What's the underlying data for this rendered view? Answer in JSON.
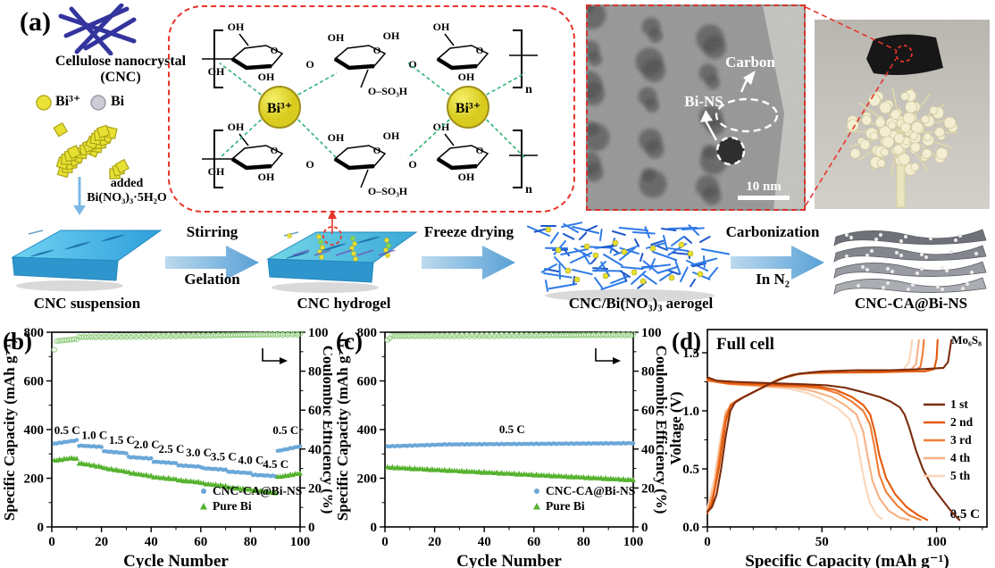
{
  "panel_a": {
    "tag": "(a)",
    "cnc_title_1": "Cellulose nanocrystal",
    "cnc_title_2": "(CNC)",
    "legend": {
      "bi3": "Bi³⁺",
      "bi": "Bi"
    },
    "added_1": "added",
    "added_2": "Bi(NO₃)₃·5H₂O",
    "molecule": {
      "oh": "OH",
      "o": "O",
      "sulfate": "O–SO₃H",
      "repeat": "n",
      "bi_ion": "Bi³⁺"
    },
    "tem": {
      "carbon": "Carbon",
      "bins": "Bi-NS",
      "scalebar": "10 nm"
    },
    "steps": [
      {
        "name": "CNC suspension"
      },
      {
        "name": "CNC hydrogel"
      },
      {
        "name": "CNC/Bi(NO₃)₃ aerogel"
      },
      {
        "name": "CNC-CA@Bi-NS"
      }
    ],
    "arrows": [
      {
        "top": "Stirring",
        "bottom": "Gelation"
      },
      {
        "top": "Freeze drying",
        "bottom": ""
      },
      {
        "top": "Carbonization",
        "bottom": "In N₂"
      }
    ]
  },
  "chart_data": [
    {
      "id": "b",
      "type": "scatter",
      "panel_label": "(b)",
      "xlabel": "Cycle Number",
      "ylabel_left": "Specific Capacity (mAh g⁻¹)",
      "ylabel_right": "Coulombic Efficiency (%)",
      "xlim": [
        0,
        100
      ],
      "ylim_left": [
        0,
        800
      ],
      "ylim_right": [
        0,
        100
      ],
      "xticks": [
        0,
        20,
        40,
        60,
        80,
        100
      ],
      "yticks_left": [
        0,
        200,
        400,
        600,
        800
      ],
      "yticks_right": [
        0,
        20,
        40,
        60,
        80,
        100
      ],
      "rate_labels": [
        {
          "text": "0.5 C",
          "x": 1,
          "y": 382
        },
        {
          "text": "1.0 C",
          "x": 12,
          "y": 362
        },
        {
          "text": "1.5 C",
          "x": 23,
          "y": 342
        },
        {
          "text": "2.0 C",
          "x": 33,
          "y": 323
        },
        {
          "text": "2.5 C",
          "x": 43,
          "y": 305
        },
        {
          "text": "3.0 C",
          "x": 54,
          "y": 289
        },
        {
          "text": "3.5 C",
          "x": 64,
          "y": 273
        },
        {
          "text": "4.0 C",
          "x": 75,
          "y": 258
        },
        {
          "text": "4.5 C",
          "x": 85,
          "y": 243
        },
        {
          "text": "0.5 C",
          "x": 89,
          "y": 382
        }
      ],
      "series": [
        {
          "name": "CNC-CA@Bi-NS",
          "marker": "circle",
          "color": "#6aa7d8",
          "axis": "left",
          "segments": [
            [
              1,
              10,
              342,
              356
            ],
            [
              11,
              20,
              334,
              329
            ],
            [
              21,
              30,
              311,
              303
            ],
            [
              31,
              40,
              287,
              281
            ],
            [
              41,
              50,
              268,
              262
            ],
            [
              51,
              60,
              253,
              247
            ],
            [
              61,
              70,
              241,
              235
            ],
            [
              71,
              80,
              227,
              221
            ],
            [
              81,
              90,
              214,
              209
            ],
            [
              91,
              100,
              312,
              331
            ]
          ]
        },
        {
          "name": "Pure Bi",
          "marker": "triangle",
          "color": "#55b22e",
          "axis": "left",
          "segments": [
            [
              1,
              8,
              274,
              284
            ],
            [
              9,
              10,
              283,
              280
            ],
            [
              11,
              20,
              263,
              248
            ],
            [
              21,
              30,
              243,
              228
            ],
            [
              31,
              40,
              224,
              210
            ],
            [
              41,
              50,
              206,
              197
            ],
            [
              51,
              60,
              193,
              184
            ],
            [
              61,
              70,
              179,
              169
            ],
            [
              71,
              80,
              164,
              154
            ],
            [
              81,
              90,
              151,
              142
            ],
            [
              91,
              100,
              206,
              221
            ]
          ]
        },
        {
          "name": "Coulombic Efficiency",
          "marker": "open-circle",
          "color": "#94cf82",
          "axis": "right",
          "segments": [
            [
              1,
              1,
              91,
              91
            ],
            [
              2,
              10,
              95.5,
              96.5
            ],
            [
              11,
              60,
              97.5,
              98.3
            ],
            [
              61,
              100,
              98.3,
              99
            ]
          ]
        }
      ],
      "legend": [
        "CNC-CA@Bi-NS",
        "Pure Bi"
      ]
    },
    {
      "id": "c",
      "type": "scatter",
      "panel_label": "(c)",
      "xlabel": "Cycle Number",
      "ylabel_left": "Specific Capacity (mAh g⁻¹)",
      "ylabel_right": "Coulombic Efficiency (%)",
      "xlim": [
        0,
        100
      ],
      "ylim_left": [
        0,
        800
      ],
      "ylim_right": [
        0,
        100
      ],
      "xticks": [
        0,
        20,
        40,
        60,
        80,
        100
      ],
      "yticks_left": [
        0,
        200,
        400,
        600,
        800
      ],
      "yticks_right": [
        0,
        20,
        40,
        60,
        80,
        100
      ],
      "rate_labels": [
        {
          "text": "0.5 C",
          "x": 46,
          "y": 385
        }
      ],
      "series": [
        {
          "name": "CNC-CA@Bi-NS",
          "marker": "circle",
          "color": "#6aa7d8",
          "axis": "left",
          "segments": [
            [
              1,
              25,
              331,
              339
            ],
            [
              26,
              100,
              339,
              344
            ]
          ]
        },
        {
          "name": "Pure Bi",
          "marker": "triangle",
          "color": "#55b22e",
          "axis": "left",
          "segments": [
            [
              1,
              100,
              246,
              194
            ]
          ]
        },
        {
          "name": "Coulombic Efficiency",
          "marker": "open-circle",
          "color": "#94cf82",
          "axis": "right",
          "segments": [
            [
              1,
              2,
              96,
              97
            ],
            [
              3,
              100,
              98,
              98.6
            ]
          ]
        }
      ],
      "legend": [
        "CNC-CA@Bi-NS",
        "Pure Bi"
      ]
    },
    {
      "id": "d",
      "type": "line",
      "panel_label": "(d)",
      "title": "Full cell",
      "annotation_right": "Mo₆S₈",
      "annotation_rate": "0.5 C",
      "xlabel": "Specific Capacity (mAh g⁻¹)",
      "ylabel": "Voltage (V)",
      "xlim": [
        0,
        122
      ],
      "ylim": [
        0,
        1.7
      ],
      "xticks": [
        0,
        50,
        100
      ],
      "ytick_labels": [
        "0.0",
        "0.5",
        "1.0",
        "1.5"
      ],
      "yticks": [
        0,
        0.5,
        1.0,
        1.5
      ],
      "series": [
        {
          "name": "1 st",
          "color": "#7a2c0d",
          "charge": [
            [
              0,
              0.13
            ],
            [
              2,
              0.17
            ],
            [
              4,
              0.28
            ],
            [
              6,
              0.5
            ],
            [
              8,
              0.78
            ],
            [
              10,
              1.0
            ],
            [
              12,
              1.07
            ],
            [
              16,
              1.12
            ],
            [
              22,
              1.18
            ],
            [
              28,
              1.24
            ],
            [
              34,
              1.29
            ],
            [
              40,
              1.32
            ],
            [
              50,
              1.34
            ],
            [
              65,
              1.35
            ],
            [
              80,
              1.35
            ],
            [
              95,
              1.36
            ],
            [
              103,
              1.37
            ],
            [
              105,
              1.42
            ],
            [
              106,
              1.55
            ],
            [
              106.5,
              1.61
            ]
          ],
          "discharge": [
            [
              0,
              1.29
            ],
            [
              4,
              1.26
            ],
            [
              12,
              1.25
            ],
            [
              25,
              1.24
            ],
            [
              40,
              1.23
            ],
            [
              52,
              1.22
            ],
            [
              60,
              1.2
            ],
            [
              68,
              1.16
            ],
            [
              75,
              1.12
            ],
            [
              80,
              1.08
            ],
            [
              84,
              1.03
            ],
            [
              86,
              0.97
            ],
            [
              88,
              0.86
            ],
            [
              91,
              0.66
            ],
            [
              94,
              0.5
            ],
            [
              98,
              0.35
            ],
            [
              103,
              0.22
            ],
            [
              107,
              0.12
            ],
            [
              110,
              0.06
            ]
          ]
        },
        {
          "name": "2 nd",
          "color": "#e4590b",
          "charge": [
            [
              0,
              0.12
            ],
            [
              2,
              0.2
            ],
            [
              5,
              0.5
            ],
            [
              8,
              0.9
            ],
            [
              10,
              1.05
            ],
            [
              13,
              1.09
            ],
            [
              18,
              1.14
            ],
            [
              25,
              1.21
            ],
            [
              31,
              1.27
            ],
            [
              37,
              1.31
            ],
            [
              45,
              1.33
            ],
            [
              60,
              1.33
            ],
            [
              80,
              1.34
            ],
            [
              95,
              1.34
            ],
            [
              99,
              1.36
            ],
            [
              100,
              1.45
            ],
            [
              100.5,
              1.61
            ]
          ],
          "discharge": [
            [
              0,
              1.27
            ],
            [
              8,
              1.24
            ],
            [
              20,
              1.23
            ],
            [
              35,
              1.22
            ],
            [
              48,
              1.21
            ],
            [
              56,
              1.18
            ],
            [
              63,
              1.12
            ],
            [
              68,
              1.05
            ],
            [
              71,
              0.97
            ],
            [
              73,
              0.82
            ],
            [
              75,
              0.62
            ],
            [
              78,
              0.42
            ],
            [
              82,
              0.28
            ],
            [
              87,
              0.17
            ],
            [
              92,
              0.1
            ],
            [
              96,
              0.06
            ]
          ]
        },
        {
          "name": "3 rd",
          "color": "#f07e35",
          "charge": [
            [
              0,
              0.12
            ],
            [
              3,
              0.3
            ],
            [
              6,
              0.7
            ],
            [
              8,
              0.95
            ],
            [
              10,
              1.04
            ],
            [
              14,
              1.1
            ],
            [
              20,
              1.16
            ],
            [
              27,
              1.23
            ],
            [
              33,
              1.28
            ],
            [
              40,
              1.32
            ],
            [
              55,
              1.33
            ],
            [
              75,
              1.33
            ],
            [
              90,
              1.34
            ],
            [
              93,
              1.38
            ],
            [
              94,
              1.5
            ],
            [
              94.5,
              1.61
            ]
          ],
          "discharge": [
            [
              0,
              1.26
            ],
            [
              10,
              1.23
            ],
            [
              25,
              1.22
            ],
            [
              40,
              1.21
            ],
            [
              50,
              1.19
            ],
            [
              57,
              1.15
            ],
            [
              63,
              1.08
            ],
            [
              68,
              1.0
            ],
            [
              71,
              0.88
            ],
            [
              73,
              0.68
            ],
            [
              75,
              0.45
            ],
            [
              78,
              0.3
            ],
            [
              83,
              0.18
            ],
            [
              88,
              0.1
            ],
            [
              93,
              0.06
            ]
          ]
        },
        {
          "name": "4 th",
          "color": "#f6b183",
          "charge": [
            [
              0,
              0.13
            ],
            [
              3,
              0.35
            ],
            [
              6,
              0.75
            ],
            [
              8,
              0.98
            ],
            [
              11,
              1.06
            ],
            [
              16,
              1.12
            ],
            [
              23,
              1.19
            ],
            [
              30,
              1.26
            ],
            [
              37,
              1.31
            ],
            [
              50,
              1.33
            ],
            [
              70,
              1.33
            ],
            [
              88,
              1.34
            ],
            [
              91,
              1.4
            ],
            [
              92,
              1.55
            ],
            [
              92.3,
              1.61
            ]
          ],
          "discharge": [
            [
              0,
              1.26
            ],
            [
              10,
              1.23
            ],
            [
              25,
              1.21
            ],
            [
              38,
              1.2
            ],
            [
              46,
              1.17
            ],
            [
              54,
              1.12
            ],
            [
              60,
              1.05
            ],
            [
              65,
              0.97
            ],
            [
              68,
              0.82
            ],
            [
              70,
              0.6
            ],
            [
              72,
              0.4
            ],
            [
              75,
              0.25
            ],
            [
              79,
              0.14
            ],
            [
              84,
              0.08
            ],
            [
              88,
              0.06
            ]
          ]
        },
        {
          "name": "5 th",
          "color": "#fbd6b8",
          "charge": [
            [
              0,
              0.16
            ],
            [
              3,
              0.42
            ],
            [
              6,
              0.8
            ],
            [
              8,
              1.0
            ],
            [
              12,
              1.07
            ],
            [
              18,
              1.14
            ],
            [
              25,
              1.21
            ],
            [
              32,
              1.28
            ],
            [
              42,
              1.32
            ],
            [
              60,
              1.33
            ],
            [
              85,
              1.34
            ],
            [
              88,
              1.42
            ],
            [
              89,
              1.55
            ],
            [
              89.3,
              1.61
            ]
          ],
          "discharge": [
            [
              0,
              1.27
            ],
            [
              10,
              1.23
            ],
            [
              24,
              1.21
            ],
            [
              36,
              1.19
            ],
            [
              44,
              1.15
            ],
            [
              50,
              1.1
            ],
            [
              57,
              1.02
            ],
            [
              62,
              0.93
            ],
            [
              65,
              0.78
            ],
            [
              67,
              0.55
            ],
            [
              69,
              0.35
            ],
            [
              71,
              0.2
            ],
            [
              74,
              0.1
            ],
            [
              76,
              0.07
            ]
          ]
        }
      ]
    }
  ]
}
